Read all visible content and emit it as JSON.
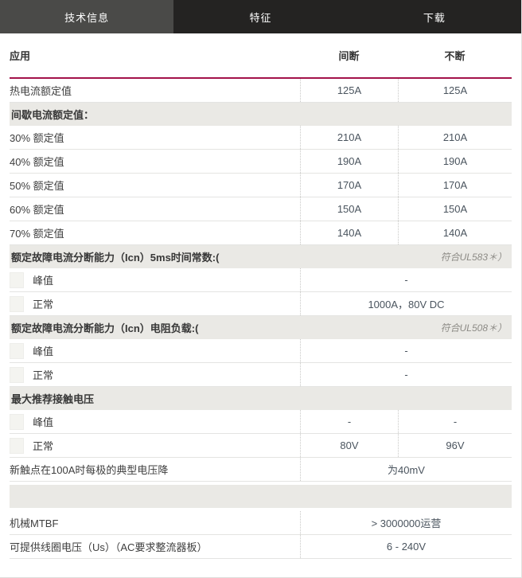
{
  "tabs": [
    {
      "label": "技术信息",
      "active": true
    },
    {
      "label": "特征",
      "active": false
    },
    {
      "label": "下载",
      "active": false
    }
  ],
  "colors": {
    "accent_line": "#a3134a",
    "tab_bar_bg": "#242322",
    "tab_active_bg": "#4a4a48",
    "section_bg": "#eae9e5"
  },
  "table": {
    "header": {
      "label": "应用",
      "col1": "间断",
      "col2": "不断"
    },
    "rows": [
      {
        "type": "data",
        "label": "热电流额定值",
        "v1": "125A",
        "v2": "125A"
      },
      {
        "type": "section",
        "label": "间歇电流额定值：",
        "note": ""
      },
      {
        "type": "data",
        "label": "30% 额定值",
        "v1": "210A",
        "v2": "210A"
      },
      {
        "type": "data",
        "label": "40% 额定值",
        "v1": "190A",
        "v2": "190A"
      },
      {
        "type": "data",
        "label": "50% 额定值",
        "v1": "170A",
        "v2": "170A"
      },
      {
        "type": "data",
        "label": "60% 额定值",
        "v1": "150A",
        "v2": "150A"
      },
      {
        "type": "data",
        "label": "70% 额定值",
        "v1": "140A",
        "v2": "140A"
      },
      {
        "type": "section",
        "label": "额定故障电流分断能力（Icn）5ms时间常数:(",
        "note": "符合UL583＊）"
      },
      {
        "type": "sub",
        "label": "峰值",
        "merged": "-"
      },
      {
        "type": "sub",
        "label": "正常",
        "merged": "1000A，80V DC"
      },
      {
        "type": "section",
        "label": "额定故障电流分断能力（Icn）电阻负载:(",
        "note": "符合UL508＊）"
      },
      {
        "type": "sub",
        "label": "峰值",
        "merged": "-"
      },
      {
        "type": "sub",
        "label": "正常",
        "merged": "-"
      },
      {
        "type": "section",
        "label": "最大推荐接触电压",
        "note": ""
      },
      {
        "type": "sub",
        "label": "峰值",
        "v1": "-",
        "v2": "-"
      },
      {
        "type": "sub",
        "label": "正常",
        "v1": "80V",
        "v2": "96V"
      },
      {
        "type": "data",
        "label": "新触点在100A时每极的典型电压降",
        "merged": "为40mV"
      },
      {
        "type": "section-empty"
      },
      {
        "type": "data",
        "label": "机械MTBF",
        "merged": "> 3000000运营"
      },
      {
        "type": "data",
        "label": "可提供线圈电压（Us）（AC要求整流器板）",
        "merged": "6 - 240V"
      }
    ]
  }
}
